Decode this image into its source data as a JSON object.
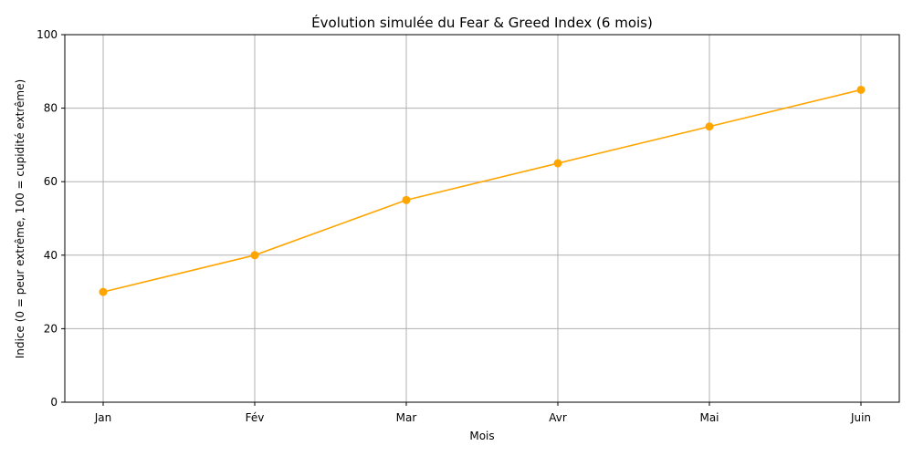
{
  "chart_data": {
    "type": "line",
    "title": "Évolution simulée du Fear & Greed Index (6 mois)",
    "xlabel": "Mois",
    "ylabel": "Indice (0 = peur extrême, 100 = cupidité extrême)",
    "categories": [
      "Jan",
      "Fév",
      "Mar",
      "Avr",
      "Mai",
      "Juin"
    ],
    "series": [
      {
        "values": [
          30,
          40,
          55,
          65,
          75,
          85
        ]
      }
    ],
    "ylim": [
      0,
      100
    ],
    "yticks": [
      0,
      20,
      40,
      60,
      80,
      100
    ],
    "grid": true,
    "markers": true,
    "color": "#ffa500"
  }
}
